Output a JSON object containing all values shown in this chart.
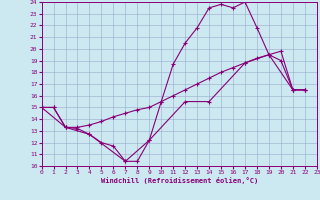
{
  "xlabel": "Windchill (Refroidissement éolien,°C)",
  "xlim": [
    0,
    23
  ],
  "ylim": [
    10,
    24
  ],
  "xticks": [
    0,
    1,
    2,
    3,
    4,
    5,
    6,
    7,
    8,
    9,
    10,
    11,
    12,
    13,
    14,
    15,
    16,
    17,
    18,
    19,
    20,
    21,
    22,
    23
  ],
  "yticks": [
    10,
    11,
    12,
    13,
    14,
    15,
    16,
    17,
    18,
    19,
    20,
    21,
    22,
    23,
    24
  ],
  "bg_color": "#cce8f0",
  "line_color": "#880077",
  "grid_color": "#99aacc",
  "series1": [
    [
      0,
      15
    ],
    [
      1,
      15
    ],
    [
      2,
      13.3
    ],
    [
      3,
      13.2
    ],
    [
      4,
      12.7
    ],
    [
      5,
      12.0
    ],
    [
      6,
      11.7
    ],
    [
      7,
      10.4
    ],
    [
      8,
      10.4
    ],
    [
      9,
      12.2
    ],
    [
      10,
      15.5
    ],
    [
      11,
      18.7
    ],
    [
      12,
      20.5
    ],
    [
      13,
      21.8
    ],
    [
      14,
      23.5
    ],
    [
      15,
      23.8
    ],
    [
      16,
      23.5
    ],
    [
      17,
      24.0
    ],
    [
      18,
      21.8
    ],
    [
      19,
      19.5
    ],
    [
      20,
      19.0
    ],
    [
      21,
      16.5
    ],
    [
      22,
      16.5
    ]
  ],
  "series2": [
    [
      0,
      15
    ],
    [
      1,
      15
    ],
    [
      2,
      13.3
    ],
    [
      3,
      13.3
    ],
    [
      4,
      13.5
    ],
    [
      5,
      13.8
    ],
    [
      6,
      14.2
    ],
    [
      7,
      14.5
    ],
    [
      8,
      14.8
    ],
    [
      9,
      15.0
    ],
    [
      10,
      15.5
    ],
    [
      11,
      16.0
    ],
    [
      12,
      16.5
    ],
    [
      13,
      17.0
    ],
    [
      14,
      17.5
    ],
    [
      15,
      18.0
    ],
    [
      16,
      18.4
    ],
    [
      17,
      18.8
    ],
    [
      18,
      19.2
    ],
    [
      19,
      19.5
    ],
    [
      20,
      19.8
    ],
    [
      21,
      16.5
    ],
    [
      22,
      16.5
    ]
  ],
  "series3": [
    [
      0,
      15
    ],
    [
      2,
      13.3
    ],
    [
      4,
      12.7
    ],
    [
      7,
      10.4
    ],
    [
      9,
      12.2
    ],
    [
      12,
      15.5
    ],
    [
      14,
      15.5
    ],
    [
      17,
      18.8
    ],
    [
      19,
      19.5
    ],
    [
      21,
      16.5
    ],
    [
      22,
      16.5
    ]
  ]
}
